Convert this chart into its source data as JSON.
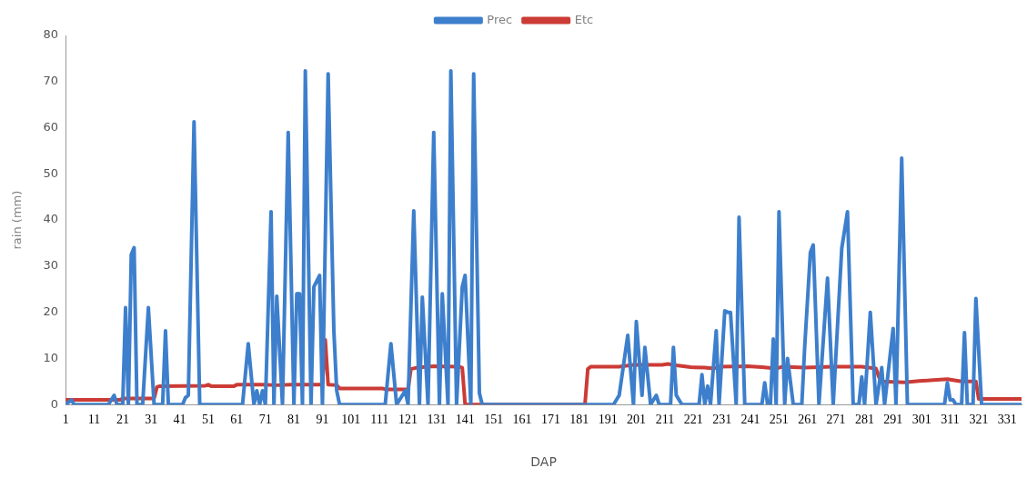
{
  "chart_data": {
    "type": "line",
    "xlabel": "DAP",
    "ylabel": "rain (mm)",
    "xlim": [
      1,
      336
    ],
    "xticks": [
      1,
      11,
      21,
      31,
      41,
      51,
      61,
      71,
      81,
      91,
      101,
      111,
      121,
      131,
      141,
      151,
      161,
      171,
      181,
      191,
      201,
      211,
      221,
      231,
      241,
      251,
      261,
      271,
      281,
      291,
      301,
      311,
      321,
      331
    ],
    "ylim": [
      0,
      80
    ],
    "yticks": [
      0,
      10,
      20,
      30,
      40,
      50,
      60,
      70,
      80
    ],
    "grid": false,
    "legend": "top",
    "marker": "none",
    "line_style": "solid",
    "series": [
      {
        "name": "Prec",
        "color": "#3d7fcc",
        "x": [
          1,
          3,
          4,
          16,
          18,
          19,
          21,
          22,
          23,
          24,
          25,
          26,
          28,
          30,
          32,
          35,
          36,
          37,
          42,
          43,
          44,
          46,
          48,
          63,
          65,
          67,
          68,
          69,
          70,
          71,
          73,
          74,
          75,
          77,
          79,
          81,
          82,
          83,
          84,
          85,
          87,
          88,
          90,
          91,
          93,
          95,
          96,
          97,
          113,
          115,
          117,
          120,
          121,
          123,
          125,
          126,
          128,
          130,
          132,
          133,
          135,
          136,
          138,
          140,
          141,
          143,
          144,
          146,
          147,
          193,
          195,
          198,
          200,
          201,
          203,
          204,
          206,
          208,
          209,
          213,
          214,
          215,
          217,
          223,
          224,
          225,
          226,
          227,
          229,
          230,
          232,
          233,
          234,
          236,
          237,
          239,
          245,
          246,
          247,
          248,
          249,
          250,
          251,
          253,
          254,
          256,
          259,
          260,
          262,
          263,
          265,
          268,
          270,
          273,
          275,
          277,
          279,
          280,
          281,
          283,
          285,
          287,
          288,
          291,
          292,
          294,
          296,
          309,
          310,
          311,
          312,
          313,
          315,
          316,
          317,
          319,
          320,
          322,
          336
        ],
        "values": [
          0,
          1,
          0,
          0,
          2,
          0,
          0,
          21,
          0,
          32.5,
          34,
          0,
          0,
          21,
          0,
          0,
          16,
          0,
          0,
          1.5,
          2,
          61.3,
          0,
          0,
          13.2,
          0,
          3,
          0,
          3,
          0,
          41.8,
          0,
          23.5,
          0,
          59,
          0,
          24,
          24,
          0,
          72.3,
          0,
          25.5,
          28,
          0,
          71.7,
          16,
          3,
          0,
          0,
          13.2,
          0,
          3,
          0,
          42,
          0,
          23.3,
          0,
          59,
          0,
          24,
          0,
          72.3,
          0,
          25.5,
          28,
          0,
          71.7,
          2.5,
          0,
          0,
          2,
          15,
          0,
          18,
          2,
          12.4,
          0,
          2,
          0,
          0,
          12.4,
          2,
          0,
          0,
          6.5,
          0,
          4,
          0,
          16,
          0,
          20.3,
          20,
          20,
          0,
          40.6,
          0,
          0,
          4.7,
          0,
          0,
          14.2,
          0,
          41.8,
          0,
          10,
          0,
          0,
          12.4,
          33,
          34.6,
          0,
          27.4,
          0,
          33.9,
          41.8,
          0,
          0,
          6,
          0,
          20,
          0,
          8,
          0,
          16.5,
          0,
          53.4,
          0,
          0,
          4.7,
          1,
          1,
          0,
          0,
          15.6,
          0,
          0,
          23,
          0,
          0
        ]
      },
      {
        "name": "Etc",
        "color": "#cc3b35",
        "x": [
          1,
          20,
          21,
          32,
          33,
          34,
          50,
          51,
          52,
          60,
          61,
          70,
          75,
          80,
          90,
          91,
          92,
          93,
          96,
          97,
          112,
          113,
          121,
          122,
          124,
          130,
          139,
          140,
          141,
          183,
          184,
          185,
          195,
          200,
          210,
          212,
          215,
          220,
          225,
          228,
          230,
          240,
          245,
          250,
          252,
          260,
          270,
          280,
          285,
          286,
          287,
          295,
          300,
          305,
          310,
          315,
          320,
          321,
          336
        ],
        "values": [
          1,
          1,
          1.3,
          1.3,
          3.8,
          4,
          4.1,
          4.3,
          4,
          4,
          4.3,
          4.3,
          4.2,
          4.3,
          4.3,
          4.5,
          14,
          4.3,
          4.2,
          3.5,
          3.5,
          3.3,
          3.3,
          7.7,
          8,
          8.3,
          8.2,
          8,
          0,
          0,
          7.7,
          8.2,
          8.2,
          8.6,
          8.6,
          8.8,
          8.5,
          8.1,
          8,
          7.8,
          8.2,
          8.3,
          8.1,
          7.8,
          8.2,
          8,
          8.2,
          8.2,
          7.8,
          6,
          5,
          4.8,
          5.1,
          5.3,
          5.5,
          5,
          5,
          1.2,
          1.2
        ]
      }
    ]
  }
}
